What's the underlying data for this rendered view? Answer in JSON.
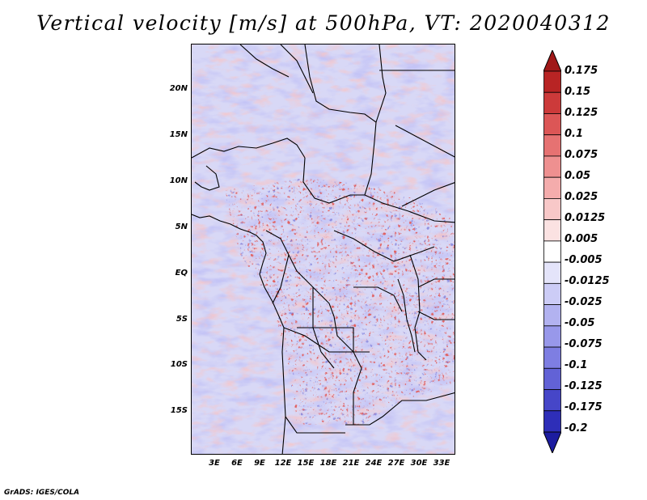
{
  "title": "Vertical velocity [m/s] at 500hPa, VT: 2020040312",
  "credit": "GrADS: IGES/COLA",
  "map": {
    "variable": "Vertical velocity",
    "level": "500hPa",
    "valid_time": "2020040312",
    "lat_ticks": [
      "20N",
      "15N",
      "10N",
      "5N",
      "EQ",
      "5S",
      "10S",
      "15S"
    ],
    "lon_ticks": [
      "3E",
      "6E",
      "9E",
      "12E",
      "15E",
      "18E",
      "21E",
      "24E",
      "27E",
      "30E",
      "33E"
    ]
  },
  "colorbar": {
    "labels": [
      "0.175",
      "0.15",
      "0.125",
      "0.1",
      "0.075",
      "0.05",
      "0.025",
      "0.0125",
      "0.005",
      "-0.005",
      "-0.0125",
      "-0.025",
      "-0.05",
      "-0.075",
      "-0.1",
      "-0.125",
      "-0.175",
      "-0.2"
    ],
    "colors": [
      "#a01818",
      "#b82424",
      "#cc3a3a",
      "#dc5656",
      "#e67272",
      "#ee9090",
      "#f4acac",
      "#f8c8c8",
      "#fbe2e2",
      "#ffffff",
      "#e4e4fa",
      "#ccccf6",
      "#b2b2f0",
      "#9898ea",
      "#7e7ee2",
      "#6262d6",
      "#4646c8",
      "#2e2eb8",
      "#1c1ca0"
    ]
  }
}
